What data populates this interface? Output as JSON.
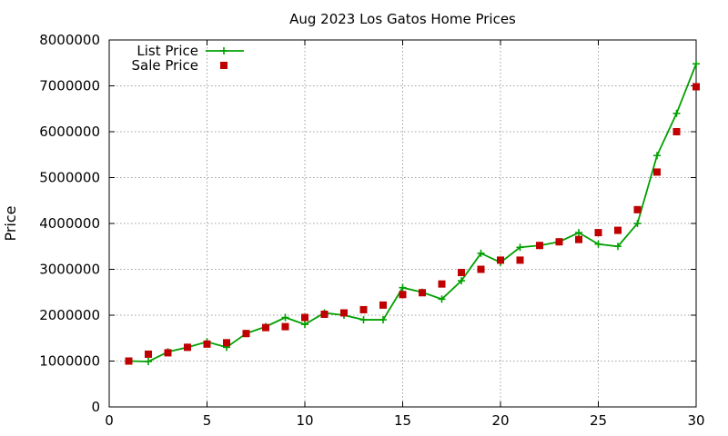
{
  "chart_data": {
    "type": "line",
    "title": "Aug 2023 Los Gatos Home Prices",
    "xlabel": "",
    "ylabel": "Price",
    "xlim": [
      0,
      30
    ],
    "ylim": [
      0,
      8000000
    ],
    "xticks": [
      0,
      5,
      10,
      15,
      20,
      25,
      30
    ],
    "yticks": [
      0,
      1000000,
      2000000,
      3000000,
      4000000,
      5000000,
      6000000,
      7000000,
      8000000
    ],
    "grid": true,
    "legend_position": "top-left",
    "x": [
      1,
      2,
      3,
      4,
      5,
      6,
      7,
      8,
      9,
      10,
      11,
      12,
      13,
      14,
      15,
      16,
      17,
      18,
      19,
      20,
      21,
      22,
      23,
      24,
      25,
      26,
      27,
      28,
      29,
      30
    ],
    "series": [
      {
        "name": "List Price",
        "style": "line-points",
        "marker": "plus",
        "color": "#00a000",
        "values": [
          1000000,
          990000,
          1200000,
          1300000,
          1420000,
          1300000,
          1600000,
          1750000,
          1950000,
          1800000,
          2050000,
          2000000,
          1900000,
          1900000,
          2600000,
          2500000,
          2350000,
          2750000,
          3350000,
          3150000,
          3480000,
          3520000,
          3600000,
          3800000,
          3550000,
          3500000,
          4000000,
          5480000,
          6400000,
          7480000
        ]
      },
      {
        "name": "Sale Price",
        "style": "points",
        "marker": "square",
        "color": "#c00000",
        "values": [
          1000000,
          1150000,
          1180000,
          1300000,
          1370000,
          1400000,
          1600000,
          1730000,
          1750000,
          1950000,
          2020000,
          2050000,
          2120000,
          2220000,
          2450000,
          2490000,
          2680000,
          2930000,
          3000000,
          3200000,
          3200000,
          3520000,
          3600000,
          3650000,
          3800000,
          3850000,
          4300000,
          5120000,
          6000000,
          6980000
        ]
      }
    ]
  }
}
